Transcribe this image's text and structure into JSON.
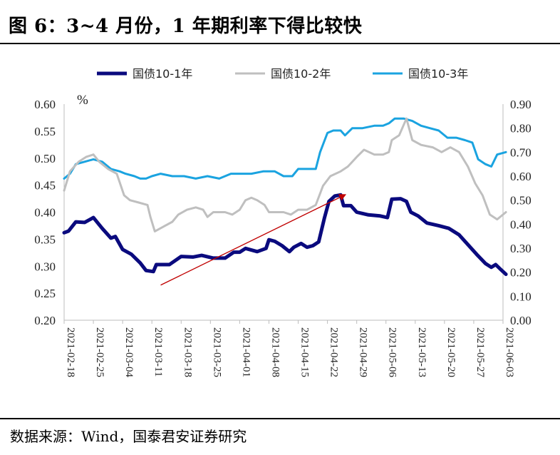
{
  "title": "图 6：3~4 月份，1 年期利率下得比较快",
  "source": "数据来源：Wind，国泰君安证券研究",
  "chart_data": {
    "type": "line",
    "unit_label": "%",
    "x": [
      "2021-02-18",
      "2021-02-25",
      "2021-03-04",
      "2021-03-11",
      "2021-03-18",
      "2021-03-25",
      "2021-04-01",
      "2021-04-08",
      "2021-04-15",
      "2021-04-22",
      "2021-04-29",
      "2021-05-06",
      "2021-05-13",
      "2021-05-20",
      "2021-05-27",
      "2021-06-03"
    ],
    "left_axis": {
      "ylim": [
        0.2,
        0.6
      ],
      "ticks": [
        "0.20",
        "0.25",
        "0.30",
        "0.35",
        "0.40",
        "0.45",
        "0.50",
        "0.55",
        "0.60"
      ]
    },
    "right_axis": {
      "ylim": [
        0.0,
        0.9
      ],
      "ticks": [
        "0.00",
        "0.10",
        "0.20",
        "0.30",
        "0.40",
        "0.50",
        "0.60",
        "0.70",
        "0.80",
        "0.90"
      ]
    },
    "legend_position": "top",
    "series": [
      {
        "name": "国债10-1年",
        "axis": "left",
        "color": "#0a0a7e",
        "points": [
          [
            0,
            0.362
          ],
          [
            0.15,
            0.365
          ],
          [
            0.4,
            0.382
          ],
          [
            0.7,
            0.381
          ],
          [
            1.0,
            0.39
          ],
          [
            1.3,
            0.37
          ],
          [
            1.6,
            0.352
          ],
          [
            1.75,
            0.355
          ],
          [
            2.0,
            0.331
          ],
          [
            2.3,
            0.322
          ],
          [
            2.6,
            0.306
          ],
          [
            2.8,
            0.292
          ],
          [
            3.05,
            0.29
          ],
          [
            3.15,
            0.303
          ],
          [
            3.6,
            0.303
          ],
          [
            4.0,
            0.318
          ],
          [
            4.4,
            0.317
          ],
          [
            4.7,
            0.32
          ],
          [
            5.1,
            0.315
          ],
          [
            5.5,
            0.315
          ],
          [
            5.8,
            0.326
          ],
          [
            6.0,
            0.326
          ],
          [
            6.2,
            0.333
          ],
          [
            6.6,
            0.327
          ],
          [
            6.9,
            0.333
          ],
          [
            7.0,
            0.349
          ],
          [
            7.2,
            0.346
          ],
          [
            7.45,
            0.338
          ],
          [
            7.7,
            0.327
          ],
          [
            7.85,
            0.335
          ],
          [
            8.1,
            0.342
          ],
          [
            8.3,
            0.335
          ],
          [
            8.5,
            0.338
          ],
          [
            8.7,
            0.345
          ],
          [
            8.9,
            0.39
          ],
          [
            9.05,
            0.42
          ],
          [
            9.25,
            0.43
          ],
          [
            9.45,
            0.432
          ],
          [
            9.55,
            0.412
          ],
          [
            9.8,
            0.412
          ],
          [
            10.0,
            0.4
          ],
          [
            10.4,
            0.395
          ],
          [
            10.8,
            0.393
          ],
          [
            11.05,
            0.39
          ],
          [
            11.2,
            0.424
          ],
          [
            11.5,
            0.425
          ],
          [
            11.7,
            0.42
          ],
          [
            11.85,
            0.4
          ],
          [
            12.1,
            0.393
          ],
          [
            12.4,
            0.38
          ],
          [
            12.8,
            0.375
          ],
          [
            13.15,
            0.37
          ],
          [
            13.5,
            0.358
          ],
          [
            13.8,
            0.34
          ],
          [
            14.1,
            0.322
          ],
          [
            14.4,
            0.305
          ],
          [
            14.6,
            0.298
          ],
          [
            14.75,
            0.303
          ],
          [
            14.9,
            0.295
          ],
          [
            15.1,
            0.285
          ]
        ]
      },
      {
        "name": "国债10-2年",
        "axis": "right",
        "color": "#bfbfbf",
        "points": [
          [
            0,
            0.54
          ],
          [
            0.2,
            0.62
          ],
          [
            0.5,
            0.66
          ],
          [
            0.75,
            0.68
          ],
          [
            1.0,
            0.69
          ],
          [
            1.2,
            0.66
          ],
          [
            1.5,
            0.63
          ],
          [
            1.8,
            0.61
          ],
          [
            2.05,
            0.52
          ],
          [
            2.25,
            0.5
          ],
          [
            2.55,
            0.49
          ],
          [
            2.85,
            0.48
          ],
          [
            2.95,
            0.43
          ],
          [
            3.1,
            0.37
          ],
          [
            3.4,
            0.39
          ],
          [
            3.7,
            0.41
          ],
          [
            3.9,
            0.44
          ],
          [
            4.2,
            0.46
          ],
          [
            4.5,
            0.47
          ],
          [
            4.75,
            0.46
          ],
          [
            4.9,
            0.43
          ],
          [
            5.1,
            0.45
          ],
          [
            5.5,
            0.45
          ],
          [
            5.75,
            0.44
          ],
          [
            6.0,
            0.46
          ],
          [
            6.2,
            0.5
          ],
          [
            6.4,
            0.51
          ],
          [
            6.6,
            0.5
          ],
          [
            6.85,
            0.48
          ],
          [
            7.0,
            0.45
          ],
          [
            7.5,
            0.45
          ],
          [
            7.75,
            0.44
          ],
          [
            8.0,
            0.46
          ],
          [
            8.3,
            0.46
          ],
          [
            8.6,
            0.48
          ],
          [
            8.85,
            0.56
          ],
          [
            9.1,
            0.6
          ],
          [
            9.45,
            0.62
          ],
          [
            9.7,
            0.64
          ],
          [
            10.0,
            0.68
          ],
          [
            10.25,
            0.71
          ],
          [
            10.6,
            0.69
          ],
          [
            10.9,
            0.69
          ],
          [
            11.1,
            0.7
          ],
          [
            11.2,
            0.75
          ],
          [
            11.45,
            0.77
          ],
          [
            11.7,
            0.84
          ],
          [
            11.9,
            0.75
          ],
          [
            12.2,
            0.73
          ],
          [
            12.6,
            0.72
          ],
          [
            12.9,
            0.7
          ],
          [
            13.2,
            0.72
          ],
          [
            13.5,
            0.7
          ],
          [
            13.8,
            0.64
          ],
          [
            14.05,
            0.57
          ],
          [
            14.3,
            0.52
          ],
          [
            14.55,
            0.44
          ],
          [
            14.8,
            0.42
          ],
          [
            15.1,
            0.45
          ]
        ]
      },
      {
        "name": "国债10-3年",
        "axis": "right",
        "color": "#1aa3e0",
        "points": [
          [
            0,
            0.59
          ],
          [
            0.2,
            0.61
          ],
          [
            0.4,
            0.65
          ],
          [
            0.7,
            0.66
          ],
          [
            1.0,
            0.67
          ],
          [
            1.3,
            0.66
          ],
          [
            1.6,
            0.63
          ],
          [
            1.9,
            0.62
          ],
          [
            2.1,
            0.61
          ],
          [
            2.4,
            0.6
          ],
          [
            2.6,
            0.59
          ],
          [
            2.8,
            0.59
          ],
          [
            3.0,
            0.6
          ],
          [
            3.3,
            0.61
          ],
          [
            3.7,
            0.6
          ],
          [
            4.1,
            0.6
          ],
          [
            4.5,
            0.59
          ],
          [
            4.9,
            0.6
          ],
          [
            5.3,
            0.59
          ],
          [
            5.7,
            0.61
          ],
          [
            6.0,
            0.61
          ],
          [
            6.4,
            0.61
          ],
          [
            6.8,
            0.62
          ],
          [
            7.2,
            0.62
          ],
          [
            7.5,
            0.6
          ],
          [
            7.8,
            0.6
          ],
          [
            8.0,
            0.63
          ],
          [
            8.3,
            0.63
          ],
          [
            8.6,
            0.63
          ],
          [
            8.75,
            0.7
          ],
          [
            9.0,
            0.78
          ],
          [
            9.2,
            0.79
          ],
          [
            9.45,
            0.79
          ],
          [
            9.6,
            0.77
          ],
          [
            9.85,
            0.8
          ],
          [
            10.2,
            0.8
          ],
          [
            10.6,
            0.81
          ],
          [
            10.9,
            0.81
          ],
          [
            11.1,
            0.82
          ],
          [
            11.3,
            0.84
          ],
          [
            11.6,
            0.84
          ],
          [
            11.9,
            0.83
          ],
          [
            12.2,
            0.81
          ],
          [
            12.5,
            0.8
          ],
          [
            12.8,
            0.79
          ],
          [
            13.1,
            0.76
          ],
          [
            13.4,
            0.76
          ],
          [
            13.7,
            0.75
          ],
          [
            13.95,
            0.74
          ],
          [
            14.15,
            0.67
          ],
          [
            14.4,
            0.65
          ],
          [
            14.6,
            0.64
          ],
          [
            14.8,
            0.69
          ],
          [
            15.1,
            0.7
          ]
        ]
      }
    ],
    "annotation": {
      "type": "arrow",
      "color": "#c00000",
      "from": [
        3.3,
        0.265
      ],
      "to": [
        9.6,
        0.432
      ]
    }
  }
}
